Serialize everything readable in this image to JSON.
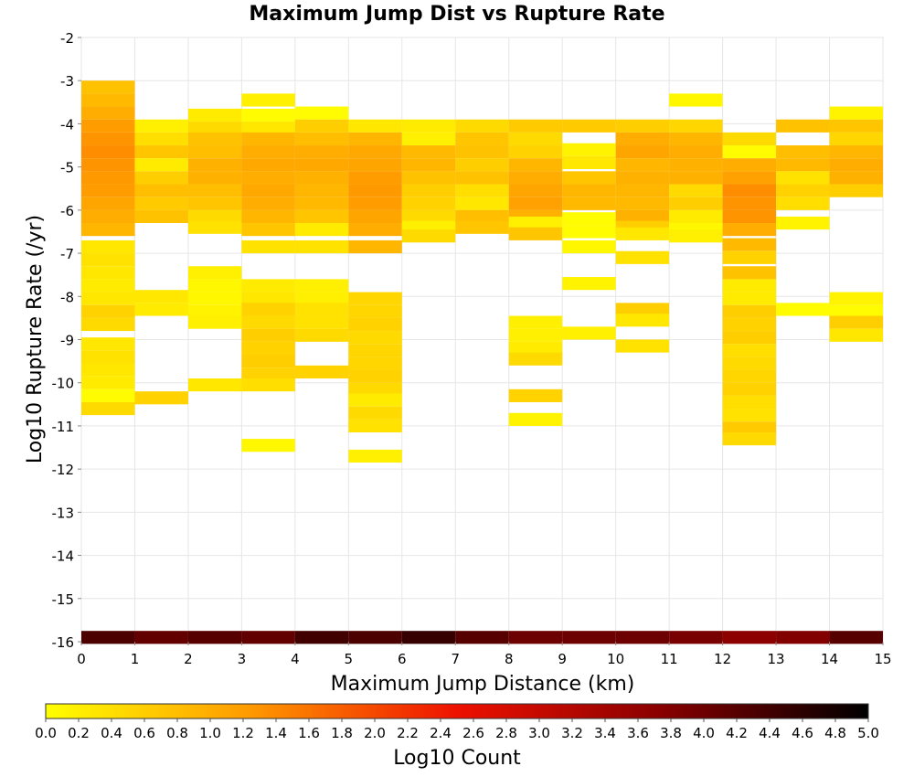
{
  "chart_data": {
    "type": "heatmap",
    "title": "Maximum Jump Dist vs Rupture Rate",
    "xlabel": "Maximum Jump Distance (km)",
    "ylabel": "Log10 Rupture Rate (/yr)",
    "xlim": [
      0,
      15
    ],
    "ylim": [
      -16,
      -2
    ],
    "x_ticks": [
      "0",
      "1",
      "2",
      "3",
      "4",
      "5",
      "6",
      "7",
      "8",
      "9",
      "10",
      "11",
      "12",
      "13",
      "14",
      "15"
    ],
    "y_ticks": [
      "-2",
      "-3",
      "-4",
      "-5",
      "-6",
      "-7",
      "-8",
      "-9",
      "-10",
      "-11",
      "-12",
      "-13",
      "-14",
      "-15",
      "-16"
    ],
    "bin_width_x": 1,
    "bin_height_y": 0.3,
    "grid": true,
    "colorbar": {
      "label": "Log10 Count",
      "range": [
        0,
        5
      ],
      "colors": [
        "#ffff00",
        "#ff9900",
        "#ee1100",
        "#880000",
        "#000000"
      ],
      "ticks": [
        "0.0",
        "0.2",
        "0.4",
        "0.6",
        "0.8",
        "1.0",
        "1.2",
        "1.4",
        "1.6",
        "1.8",
        "2.0",
        "2.2",
        "2.4",
        "2.6",
        "2.8",
        "3.0",
        "3.2",
        "3.4",
        "3.6",
        "3.8",
        "4.0",
        "4.2",
        "4.4",
        "4.6",
        "4.8",
        "5.0"
      ]
    },
    "cells": {
      "0": [
        [
          -3.15,
          0.75
        ],
        [
          -3.45,
          0.85
        ],
        [
          -3.75,
          1.0
        ],
        [
          -4.05,
          1.2
        ],
        [
          -4.35,
          1.3
        ],
        [
          -4.65,
          1.35
        ],
        [
          -4.95,
          1.3
        ],
        [
          -5.25,
          1.25
        ],
        [
          -5.55,
          1.2
        ],
        [
          -5.85,
          1.1
        ],
        [
          -6.15,
          1.0
        ],
        [
          -6.45,
          0.9
        ],
        [
          -6.85,
          0.3
        ],
        [
          -7.15,
          0.35
        ],
        [
          -7.45,
          0.3
        ],
        [
          -7.75,
          0.25
        ],
        [
          -8.05,
          0.3
        ],
        [
          -8.35,
          0.55
        ],
        [
          -8.65,
          0.45
        ],
        [
          -9.1,
          0.3
        ],
        [
          -9.4,
          0.35
        ],
        [
          -9.7,
          0.3
        ],
        [
          -10.0,
          0.25
        ],
        [
          -10.3,
          0.05
        ],
        [
          -10.6,
          0.45
        ]
      ],
      "1": [
        [
          -4.05,
          0.2
        ],
        [
          -4.35,
          0.4
        ],
        [
          -4.65,
          0.7
        ],
        [
          -4.95,
          0.25
        ],
        [
          -5.25,
          0.6
        ],
        [
          -5.55,
          0.8
        ],
        [
          -5.85,
          0.65
        ],
        [
          -6.15,
          0.75
        ],
        [
          -8.0,
          0.3
        ],
        [
          -8.3,
          0.25
        ],
        [
          -10.35,
          0.55
        ]
      ],
      "2": [
        [
          -3.8,
          0.25
        ],
        [
          -4.1,
          0.45
        ],
        [
          -4.35,
          0.75
        ],
        [
          -4.65,
          0.8
        ],
        [
          -4.95,
          0.95
        ],
        [
          -5.25,
          0.95
        ],
        [
          -5.55,
          0.8
        ],
        [
          -5.85,
          0.7
        ],
        [
          -6.15,
          0.45
        ],
        [
          -6.4,
          0.35
        ],
        [
          -7.45,
          0.2
        ],
        [
          -7.75,
          0.1
        ],
        [
          -8.05,
          0.1
        ],
        [
          -8.35,
          0.15
        ],
        [
          -8.6,
          0.2
        ],
        [
          -10.05,
          0.3
        ]
      ],
      "3": [
        [
          -3.45,
          0.2
        ],
        [
          -3.8,
          0.05
        ],
        [
          -4.1,
          0.3
        ],
        [
          -4.35,
          0.9
        ],
        [
          -4.65,
          1.0
        ],
        [
          -4.95,
          1.05
        ],
        [
          -5.25,
          1.0
        ],
        [
          -5.55,
          1.05
        ],
        [
          -5.85,
          1.0
        ],
        [
          -6.15,
          0.9
        ],
        [
          -6.45,
          0.7
        ],
        [
          -6.85,
          0.35
        ],
        [
          -7.75,
          0.25
        ],
        [
          -8.05,
          0.3
        ],
        [
          -8.3,
          0.55
        ],
        [
          -8.6,
          0.45
        ],
        [
          -8.9,
          0.6
        ],
        [
          -9.2,
          0.55
        ],
        [
          -9.5,
          0.6
        ],
        [
          -9.8,
          0.55
        ],
        [
          -10.05,
          0.4
        ],
        [
          -11.45,
          0.1
        ]
      ],
      "4": [
        [
          -3.75,
          0.05
        ],
        [
          -4.05,
          0.6
        ],
        [
          -4.35,
          0.8
        ],
        [
          -4.65,
          1.0
        ],
        [
          -4.95,
          1.05
        ],
        [
          -5.25,
          0.95
        ],
        [
          -5.55,
          0.9
        ],
        [
          -5.85,
          0.85
        ],
        [
          -6.15,
          0.7
        ],
        [
          -6.45,
          0.25
        ],
        [
          -6.85,
          0.35
        ],
        [
          -7.75,
          0.2
        ],
        [
          -8.05,
          0.2
        ],
        [
          -8.3,
          0.35
        ],
        [
          -8.6,
          0.35
        ],
        [
          -8.9,
          0.45
        ],
        [
          -9.75,
          0.55
        ]
      ],
      "5": [
        [
          -4.05,
          0.3
        ],
        [
          -4.35,
          0.9
        ],
        [
          -4.65,
          1.05
        ],
        [
          -4.95,
          1.1
        ],
        [
          -5.25,
          1.2
        ],
        [
          -5.55,
          1.25
        ],
        [
          -5.85,
          1.2
        ],
        [
          -6.15,
          1.1
        ],
        [
          -6.45,
          1.0
        ],
        [
          -6.85,
          0.9
        ],
        [
          -8.05,
          0.5
        ],
        [
          -8.35,
          0.5
        ],
        [
          -8.65,
          0.55
        ],
        [
          -8.95,
          0.45
        ],
        [
          -9.25,
          0.5
        ],
        [
          -9.55,
          0.5
        ],
        [
          -9.85,
          0.55
        ],
        [
          -10.15,
          0.45
        ],
        [
          -10.4,
          0.25
        ],
        [
          -10.7,
          0.45
        ],
        [
          -11.0,
          0.35
        ],
        [
          -11.7,
          0.2
        ]
      ],
      "6": [
        [
          -4.05,
          0.25
        ],
        [
          -4.35,
          0.2
        ],
        [
          -4.65,
          0.85
        ],
        [
          -4.95,
          0.9
        ],
        [
          -5.25,
          0.75
        ],
        [
          -5.55,
          0.6
        ],
        [
          -5.85,
          0.55
        ],
        [
          -6.15,
          0.45
        ],
        [
          -6.4,
          0.2
        ],
        [
          -6.6,
          0.45
        ]
      ],
      "7": [
        [
          -4.05,
          0.45
        ],
        [
          -4.35,
          0.7
        ],
        [
          -4.65,
          0.75
        ],
        [
          -4.95,
          0.6
        ],
        [
          -5.25,
          0.75
        ],
        [
          -5.55,
          0.4
        ],
        [
          -5.85,
          0.3
        ],
        [
          -6.15,
          0.8
        ],
        [
          -6.4,
          0.7
        ]
      ],
      "8": [
        [
          -4.05,
          0.65
        ],
        [
          -4.35,
          0.45
        ],
        [
          -4.65,
          0.55
        ],
        [
          -4.95,
          0.9
        ],
        [
          -5.25,
          1.0
        ],
        [
          -5.55,
          1.1
        ],
        [
          -5.85,
          1.15
        ],
        [
          -6.15,
          0.95
        ],
        [
          -6.3,
          0.2
        ],
        [
          -6.55,
          0.7
        ],
        [
          -8.6,
          0.2
        ],
        [
          -8.9,
          0.2
        ],
        [
          -9.2,
          0.25
        ],
        [
          -9.45,
          0.45
        ],
        [
          -10.3,
          0.55
        ],
        [
          -10.85,
          0.15
        ]
      ],
      "9": [
        [
          -4.05,
          0.65
        ],
        [
          -4.6,
          0.15
        ],
        [
          -4.9,
          0.3
        ],
        [
          -5.25,
          0.7
        ],
        [
          -5.55,
          0.9
        ],
        [
          -5.85,
          0.85
        ],
        [
          -6.2,
          0.05
        ],
        [
          -6.5,
          0.05
        ],
        [
          -6.85,
          0.1
        ],
        [
          -7.7,
          0.15
        ],
        [
          -8.85,
          0.2
        ]
      ],
      "10": [
        [
          -4.05,
          0.6
        ],
        [
          -4.35,
          1.0
        ],
        [
          -4.65,
          1.1
        ],
        [
          -4.95,
          0.9
        ],
        [
          -5.25,
          0.95
        ],
        [
          -5.55,
          0.9
        ],
        [
          -5.85,
          0.85
        ],
        [
          -6.15,
          0.95
        ],
        [
          -6.4,
          0.6
        ],
        [
          -6.55,
          0.3
        ],
        [
          -7.1,
          0.35
        ],
        [
          -8.3,
          0.6
        ],
        [
          -8.55,
          0.3
        ],
        [
          -9.15,
          0.35
        ]
      ],
      "11": [
        [
          -3.45,
          0.1
        ],
        [
          -4.05,
          0.5
        ],
        [
          -4.35,
          0.9
        ],
        [
          -4.65,
          1.0
        ],
        [
          -4.95,
          0.95
        ],
        [
          -5.25,
          0.95
        ],
        [
          -5.55,
          0.45
        ],
        [
          -5.85,
          0.6
        ],
        [
          -6.15,
          0.25
        ],
        [
          -6.45,
          0.1
        ],
        [
          -6.6,
          0.2
        ]
      ],
      "12": [
        [
          -4.35,
          0.45
        ],
        [
          -4.65,
          0.05
        ],
        [
          -4.95,
          1.0
        ],
        [
          -5.25,
          1.15
        ],
        [
          -5.55,
          1.35
        ],
        [
          -5.85,
          1.3
        ],
        [
          -6.15,
          1.3
        ],
        [
          -6.45,
          1.0
        ],
        [
          -6.8,
          0.85
        ],
        [
          -7.1,
          0.55
        ],
        [
          -7.45,
          0.75
        ],
        [
          -7.75,
          0.25
        ],
        [
          -8.05,
          0.25
        ],
        [
          -8.35,
          0.6
        ],
        [
          -8.65,
          0.55
        ],
        [
          -8.95,
          0.6
        ],
        [
          -9.25,
          0.4
        ],
        [
          -9.55,
          0.45
        ],
        [
          -9.85,
          0.5
        ],
        [
          -10.15,
          0.55
        ],
        [
          -10.45,
          0.4
        ],
        [
          -10.75,
          0.35
        ],
        [
          -11.05,
          0.65
        ],
        [
          -11.3,
          0.45
        ]
      ],
      "13": [
        [
          -4.05,
          0.75
        ],
        [
          -4.65,
          0.8
        ],
        [
          -4.95,
          0.85
        ],
        [
          -5.25,
          0.35
        ],
        [
          -5.55,
          0.55
        ],
        [
          -5.85,
          0.4
        ],
        [
          -6.3,
          0.15
        ],
        [
          -8.3,
          0.05
        ]
      ],
      "14": [
        [
          -3.75,
          0.15
        ],
        [
          -4.05,
          0.7
        ],
        [
          -4.35,
          0.5
        ],
        [
          -4.65,
          0.9
        ],
        [
          -4.95,
          1.0
        ],
        [
          -5.25,
          0.95
        ],
        [
          -5.55,
          0.6
        ],
        [
          -8.05,
          0.15
        ],
        [
          -8.35,
          0.05
        ],
        [
          -8.6,
          0.6
        ],
        [
          -8.9,
          0.3
        ]
      ]
    },
    "floor_row": {
      "y": -15.9,
      "values": [
        4.3,
        4.1,
        4.2,
        4.1,
        4.4,
        4.3,
        4.5,
        4.2,
        4.0,
        4.0,
        4.0,
        3.9,
        3.7,
        3.8,
        4.2
      ]
    }
  }
}
